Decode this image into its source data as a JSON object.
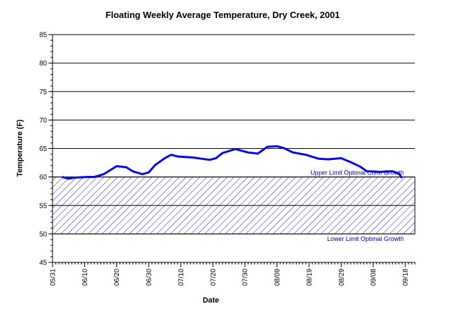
{
  "chart_data": {
    "type": "line",
    "title": "Floating Weekly Average Temperature, Dry Creek, 2001",
    "xlabel": "Date",
    "ylabel": "Temperature (F)",
    "x": [
      "06/03",
      "06/05",
      "06/07",
      "06/11",
      "06/13",
      "06/16",
      "06/18",
      "06/20",
      "06/23",
      "06/25",
      "06/28",
      "06/30",
      "07/02",
      "07/05",
      "07/07",
      "07/09",
      "07/14",
      "07/19",
      "07/21",
      "07/23",
      "07/27",
      "07/31",
      "08/03",
      "08/06",
      "08/09",
      "08/11",
      "08/14",
      "08/18",
      "08/22",
      "08/25",
      "08/29",
      "09/01",
      "09/04",
      "09/06",
      "09/10",
      "09/14",
      "09/16",
      "09/17"
    ],
    "series": [
      {
        "name": "Floating Weekly Average Temperature",
        "color": "#0000ee",
        "values": [
          60.0,
          59.7,
          59.9,
          60.0,
          60.0,
          60.5,
          61.2,
          61.9,
          61.7,
          61.0,
          60.5,
          60.8,
          62.1,
          63.3,
          63.9,
          63.6,
          63.4,
          63.0,
          63.3,
          64.2,
          64.9,
          64.3,
          64.1,
          65.3,
          65.4,
          65.1,
          64.3,
          63.9,
          63.2,
          63.1,
          63.3,
          62.6,
          61.8,
          61.0,
          60.9,
          61.0,
          60.6,
          59.8
        ]
      }
    ],
    "band": {
      "range": [
        50,
        60
      ],
      "upper_label": "Upper Limit Optimal Coho Growth",
      "lower_label": "Lower Limit Optimal Growth"
    },
    "xlim": [
      "05/31",
      "09/21"
    ],
    "xticks": [
      "05/31",
      "06/10",
      "06/20",
      "06/30",
      "07/10",
      "07/20",
      "07/30",
      "08/09",
      "08/19",
      "08/29",
      "09/08",
      "09/18"
    ],
    "ylim": [
      45,
      85
    ],
    "yticks": [
      45,
      50,
      55,
      60,
      65,
      70,
      75,
      80,
      85
    ],
    "grid": true
  }
}
